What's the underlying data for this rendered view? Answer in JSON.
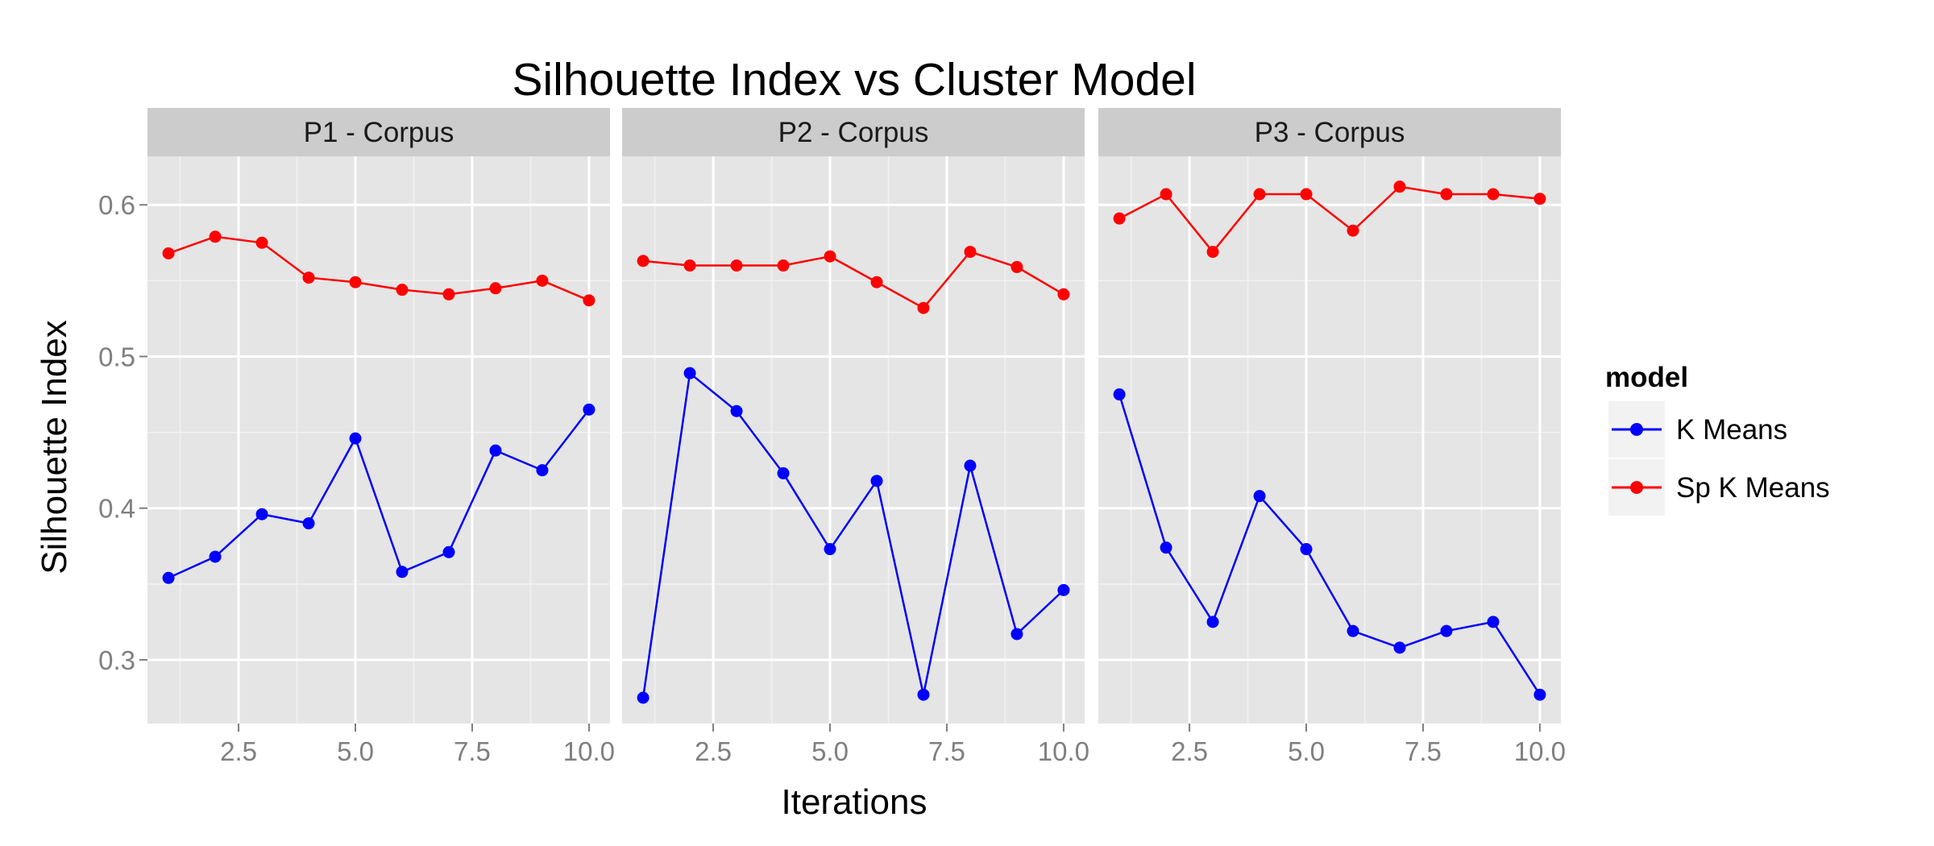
{
  "chart_data": {
    "type": "line",
    "title": "Silhouette Index  vs Cluster Model",
    "xlabel": "Iterations",
    "ylabel": "Silhouette Index",
    "x": [
      1,
      2,
      3,
      4,
      5,
      6,
      7,
      8,
      9,
      10
    ],
    "xlim": [
      0.55,
      10.45
    ],
    "ylim": [
      0.258,
      0.632
    ],
    "x_ticks": [
      2.5,
      5.0,
      7.5,
      10.0
    ],
    "x_tick_labels": [
      "2.5",
      "5.0",
      "7.5",
      "10.0"
    ],
    "y_ticks": [
      0.3,
      0.4,
      0.5,
      0.6
    ],
    "y_tick_labels": [
      "0.3",
      "0.4",
      "0.5",
      "0.6"
    ],
    "grid": true,
    "legend": {
      "title": "model",
      "position": "right",
      "entries": [
        {
          "label": "K Means",
          "color": "#0000FF"
        },
        {
          "label": "Sp K Means",
          "color": "#FF0000"
        }
      ]
    },
    "panels": [
      {
        "label": "P1 - Corpus",
        "series": [
          {
            "name": "K Means",
            "color": "#0000FF",
            "values": [
              0.354,
              0.368,
              0.396,
              0.39,
              0.446,
              0.358,
              0.371,
              0.438,
              0.425,
              0.465
            ]
          },
          {
            "name": "Sp K Means",
            "color": "#FF0000",
            "values": [
              0.568,
              0.579,
              0.575,
              0.552,
              0.549,
              0.544,
              0.541,
              0.545,
              0.55,
              0.537
            ]
          }
        ]
      },
      {
        "label": "P2 - Corpus",
        "series": [
          {
            "name": "K Means",
            "color": "#0000FF",
            "values": [
              0.275,
              0.489,
              0.464,
              0.423,
              0.373,
              0.418,
              0.277,
              0.428,
              0.317,
              0.346
            ]
          },
          {
            "name": "Sp K Means",
            "color": "#FF0000",
            "values": [
              0.563,
              0.56,
              0.56,
              0.56,
              0.566,
              0.549,
              0.532,
              0.569,
              0.559,
              0.541
            ]
          }
        ]
      },
      {
        "label": "P3 - Corpus",
        "series": [
          {
            "name": "K Means",
            "color": "#0000FF",
            "values": [
              0.475,
              0.374,
              0.325,
              0.408,
              0.373,
              0.319,
              0.308,
              0.319,
              0.325,
              0.277
            ]
          },
          {
            "name": "Sp K Means",
            "color": "#FF0000",
            "values": [
              0.591,
              0.607,
              0.569,
              0.607,
              0.607,
              0.583,
              0.612,
              0.607,
              0.607,
              0.604
            ]
          }
        ]
      }
    ]
  }
}
